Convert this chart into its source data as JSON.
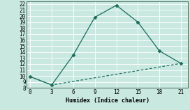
{
  "xlabel": "Humidex (Indice chaleur)",
  "ylabel": "",
  "background_color": "#c8e8e0",
  "grid_color": "#ffffff",
  "line_color": "#1a6b5a",
  "xlim": [
    -0.5,
    22
  ],
  "ylim": [
    8,
    22.5
  ],
  "xticks": [
    0,
    3,
    6,
    9,
    12,
    15,
    18,
    21
  ],
  "yticks": [
    8,
    9,
    10,
    11,
    12,
    13,
    14,
    15,
    16,
    17,
    18,
    19,
    20,
    21,
    22
  ],
  "line1_x": [
    0,
    3,
    6,
    9,
    12,
    15,
    18,
    21
  ],
  "line1_y": [
    9.9,
    8.5,
    13.5,
    19.8,
    21.8,
    19.0,
    14.2,
    12.1
  ],
  "line2_x": [
    0,
    3,
    21
  ],
  "line2_y": [
    9.9,
    8.5,
    12.1
  ],
  "marker": "D",
  "markersize": 2.5,
  "linewidth": 0.9
}
